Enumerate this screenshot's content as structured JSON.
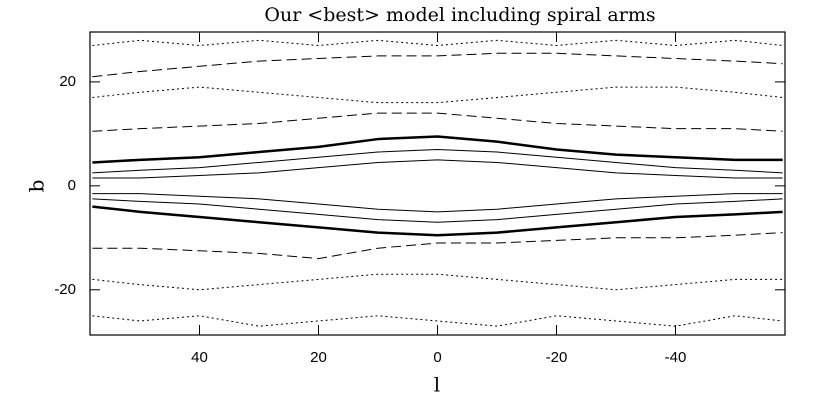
{
  "chart_data": {
    "type": "line",
    "title": "Our <best> model including spiral arms",
    "xlabel": "l",
    "ylabel": "b",
    "xlim": [
      58.4,
      -58.4
    ],
    "ylim": [
      -28.7,
      29.6
    ],
    "xticks": [
      40,
      20,
      0,
      -20,
      -40
    ],
    "yticks": [
      20,
      0,
      -20
    ],
    "x": [
      58,
      50,
      40,
      30,
      20,
      10,
      0,
      -10,
      -20,
      -30,
      -40,
      -50,
      -58
    ],
    "series": [
      {
        "color": "#000",
        "dash": "solid",
        "width": 2.5,
        "values": [
          4.5,
          5,
          5.5,
          6.5,
          7.5,
          9,
          9.5,
          8.5,
          7,
          6,
          5.5,
          5,
          5
        ]
      },
      {
        "color": "#000",
        "dash": "solid",
        "width": 2.5,
        "values": [
          -4,
          -5,
          -6,
          -7,
          -8,
          -9,
          -9.5,
          -9,
          -8,
          -7,
          -6,
          -5.5,
          -5
        ]
      },
      {
        "color": "#000",
        "dash": "solid",
        "width": 1,
        "values": [
          2.5,
          3,
          3.5,
          4.5,
          5.5,
          6.5,
          7,
          6.5,
          5.5,
          4.5,
          3.5,
          3,
          2.5
        ]
      },
      {
        "color": "#000",
        "dash": "solid",
        "width": 1,
        "values": [
          -2.5,
          -3,
          -3.5,
          -4.5,
          -5.5,
          -6.5,
          -7,
          -6.5,
          -5.5,
          -4.5,
          -3.5,
          -3,
          -2.5
        ]
      },
      {
        "color": "#000",
        "dash": "solid",
        "width": 1,
        "values": [
          1.5,
          1.5,
          2,
          2.5,
          3.5,
          4.5,
          5,
          4.5,
          3.5,
          2.5,
          2,
          1.5,
          1.5
        ]
      },
      {
        "color": "#000",
        "dash": "solid",
        "width": 1,
        "values": [
          -1.5,
          -1.5,
          -2,
          -2.5,
          -3.5,
          -4.5,
          -5,
          -4.5,
          -3.5,
          -2.5,
          -2,
          -1.5,
          -1.5
        ]
      },
      {
        "color": "#000",
        "dash": "dashed",
        "width": 1,
        "values": [
          10.5,
          11,
          11.5,
          12,
          13,
          14,
          14,
          13,
          12,
          11.5,
          11,
          11,
          10.5
        ]
      },
      {
        "color": "#000",
        "dash": "dashed",
        "width": 1,
        "values": [
          21,
          22,
          23,
          24,
          24.5,
          25,
          25,
          25.5,
          25.5,
          25,
          24.5,
          24,
          23.5
        ]
      },
      {
        "color": "#000",
        "dash": "dashed",
        "width": 1,
        "values": [
          -12,
          -12,
          -12.5,
          -13,
          -14,
          -12,
          -11,
          -11,
          -10.5,
          -10,
          -10,
          -9.5,
          -9
        ]
      },
      {
        "color": "#000",
        "dash": "dotted",
        "width": 1,
        "values": [
          17,
          18,
          19,
          18,
          17,
          16,
          16,
          17,
          18,
          19,
          19,
          18,
          17
        ]
      },
      {
        "color": "#000",
        "dash": "dotted",
        "width": 1,
        "values": [
          -18,
          -19,
          -20,
          -19,
          -18,
          -17,
          -17,
          -18,
          -19,
          -20,
          -19,
          -18,
          -18
        ]
      },
      {
        "color": "#000",
        "dash": "dotted",
        "width": 1,
        "values": [
          27,
          28,
          27,
          28,
          27,
          28,
          27,
          28,
          27,
          28,
          27,
          28,
          27
        ]
      },
      {
        "color": "#000",
        "dash": "dotted",
        "width": 1,
        "values": [
          -25,
          -26,
          -25,
          -27,
          -26,
          -25,
          -26,
          -27,
          -25,
          -26,
          -27,
          -25,
          -26
        ]
      }
    ]
  }
}
